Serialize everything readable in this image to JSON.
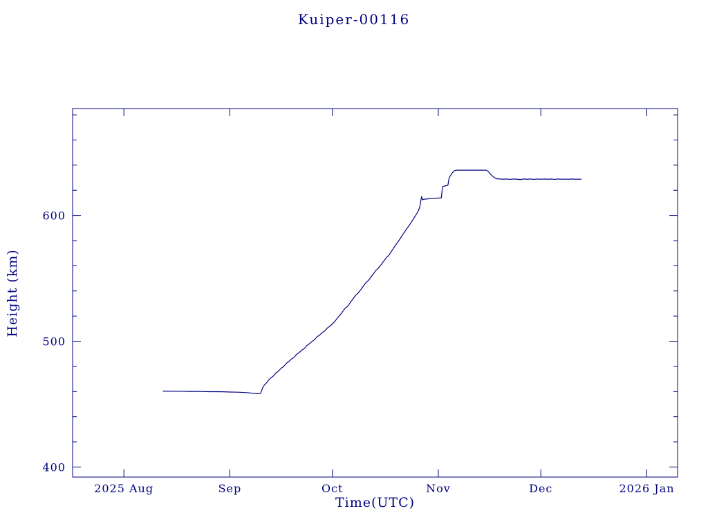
{
  "chart_data": {
    "type": "line",
    "title": "Kuiper-00116",
    "xlabel": "Time(UTC)",
    "ylabel": "Height (km)",
    "x_unit": "days since 2025-08-01",
    "xlim": [
      -15,
      162
    ],
    "ylim": [
      392,
      685
    ],
    "grid": false,
    "legend": "none",
    "axis_color": "#000080",
    "line_color": "#000080",
    "x_ticks": [
      {
        "day": 0,
        "label": "2025 Aug"
      },
      {
        "day": 31,
        "label": "Sep"
      },
      {
        "day": 61,
        "label": "Oct"
      },
      {
        "day": 92,
        "label": "Nov"
      },
      {
        "day": 122,
        "label": "Dec"
      },
      {
        "day": 153,
        "label": "2026 Jan"
      }
    ],
    "y_ticks": [
      {
        "value": 400,
        "label": "400"
      },
      {
        "value": 500,
        "label": "500"
      },
      {
        "value": 600,
        "label": "600"
      }
    ],
    "y_minor_step": 20,
    "series": [
      {
        "name": "height",
        "points": [
          [
            11.5,
            460.3
          ],
          [
            13,
            460.3
          ],
          [
            15,
            460.2
          ],
          [
            17,
            460.2
          ],
          [
            19,
            460.1
          ],
          [
            21,
            460.1
          ],
          [
            23,
            460.0
          ],
          [
            25,
            459.9
          ],
          [
            27,
            459.9
          ],
          [
            29,
            459.8
          ],
          [
            31,
            459.6
          ],
          [
            33,
            459.5
          ],
          [
            35,
            459.3
          ],
          [
            36.5,
            459.0
          ],
          [
            37.5,
            458.7
          ],
          [
            38.5,
            458.4
          ],
          [
            39.5,
            458.2
          ],
          [
            40,
            458.5
          ],
          [
            40.4,
            461.5
          ],
          [
            40.8,
            464.0
          ],
          [
            41.2,
            465.5
          ],
          [
            41.8,
            467.0
          ],
          [
            42.3,
            469.0
          ],
          [
            43,
            470.8
          ],
          [
            43.8,
            472.5
          ],
          [
            44.5,
            474.8
          ],
          [
            45.2,
            476.2
          ],
          [
            46,
            478.5
          ],
          [
            46.8,
            480.0
          ],
          [
            47.5,
            482.3
          ],
          [
            48.3,
            484.0
          ],
          [
            49,
            485.8
          ],
          [
            49.8,
            487.2
          ],
          [
            50.5,
            489.5
          ],
          [
            51.3,
            491.0
          ],
          [
            52,
            492.8
          ],
          [
            52.8,
            494.2
          ],
          [
            53.5,
            496.5
          ],
          [
            54.3,
            498.0
          ],
          [
            55,
            499.8
          ],
          [
            55.8,
            501.2
          ],
          [
            56.5,
            503.5
          ],
          [
            57.3,
            505.0
          ],
          [
            58,
            506.8
          ],
          [
            58.8,
            508.2
          ],
          [
            59.5,
            510.5
          ],
          [
            60.3,
            512.0
          ],
          [
            61,
            513.8
          ],
          [
            61.8,
            516.0
          ],
          [
            62.5,
            518.5
          ],
          [
            63.3,
            521.0
          ],
          [
            64,
            523.5
          ],
          [
            64.8,
            526.5
          ],
          [
            65.5,
            527.8
          ],
          [
            66.3,
            531.0
          ],
          [
            67,
            533.5
          ],
          [
            67.8,
            536.5
          ],
          [
            68.5,
            538.2
          ],
          [
            69.3,
            541.0
          ],
          [
            70,
            543.5
          ],
          [
            70.8,
            546.5
          ],
          [
            71.5,
            548.2
          ],
          [
            72.3,
            551.0
          ],
          [
            73,
            553.5
          ],
          [
            73.8,
            556.5
          ],
          [
            74.5,
            558.2
          ],
          [
            75.3,
            561.0
          ],
          [
            76,
            563.5
          ],
          [
            76.8,
            566.5
          ],
          [
            77.5,
            568.2
          ],
          [
            78.3,
            571.5
          ],
          [
            79,
            574.5
          ],
          [
            79.8,
            577.5
          ],
          [
            80.5,
            580.2
          ],
          [
            81.3,
            583.5
          ],
          [
            82,
            586.5
          ],
          [
            82.8,
            589.5
          ],
          [
            83.5,
            592.2
          ],
          [
            84.3,
            595.5
          ],
          [
            85,
            598.5
          ],
          [
            85.7,
            601.5
          ],
          [
            86.2,
            604.0
          ],
          [
            86.6,
            607.0
          ],
          [
            86.9,
            612.0
          ],
          [
            87.1,
            615.0
          ],
          [
            87.4,
            612.5
          ],
          [
            88,
            613.0
          ],
          [
            89,
            613.2
          ],
          [
            90,
            613.5
          ],
          [
            91,
            613.6
          ],
          [
            92,
            613.8
          ],
          [
            92.9,
            614.0
          ],
          [
            93.1,
            620.0
          ],
          [
            93.3,
            623.0
          ],
          [
            94,
            623.5
          ],
          [
            94.8,
            624.0
          ],
          [
            95.1,
            629.0
          ],
          [
            95.4,
            631.0
          ],
          [
            96,
            633.5
          ],
          [
            96.6,
            635.5
          ],
          [
            97.2,
            636.0
          ],
          [
            98,
            636.0
          ],
          [
            99,
            636.0
          ],
          [
            100,
            636.0
          ],
          [
            101,
            636.0
          ],
          [
            102,
            636.0
          ],
          [
            103,
            636.0
          ],
          [
            104,
            636.0
          ],
          [
            105,
            636.0
          ],
          [
            106,
            636.0
          ],
          [
            106.6,
            635.0
          ],
          [
            107.2,
            633.0
          ],
          [
            107.8,
            631.5
          ],
          [
            108.4,
            630.0
          ],
          [
            109,
            629.2
          ],
          [
            110,
            629.0
          ],
          [
            111,
            628.8
          ],
          [
            112,
            629.0
          ],
          [
            113,
            628.7
          ],
          [
            114,
            629.0
          ],
          [
            115,
            628.8
          ],
          [
            116,
            628.6
          ],
          [
            117,
            629.0
          ],
          [
            118,
            628.8
          ],
          [
            119,
            629.0
          ],
          [
            120,
            628.7
          ],
          [
            121,
            629.0
          ],
          [
            122,
            628.8
          ],
          [
            123,
            629.0
          ],
          [
            124,
            628.8
          ],
          [
            125,
            629.0
          ],
          [
            126,
            628.7
          ],
          [
            127,
            629.0
          ],
          [
            128,
            628.8
          ],
          [
            129,
            628.9
          ],
          [
            130,
            628.8
          ],
          [
            131,
            629.0
          ],
          [
            132,
            628.8
          ],
          [
            133,
            628.9
          ],
          [
            133.8,
            628.8
          ]
        ]
      }
    ]
  }
}
